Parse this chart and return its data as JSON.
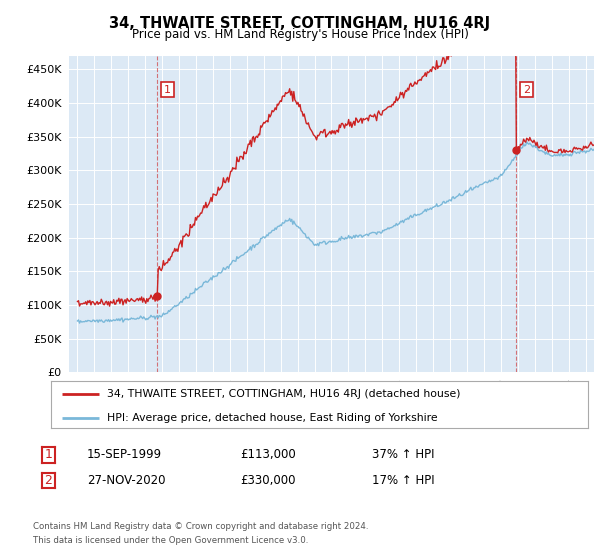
{
  "title": "34, THWAITE STREET, COTTINGHAM, HU16 4RJ",
  "subtitle": "Price paid vs. HM Land Registry's House Price Index (HPI)",
  "legend_line1": "34, THWAITE STREET, COTTINGHAM, HU16 4RJ (detached house)",
  "legend_line2": "HPI: Average price, detached house, East Riding of Yorkshire",
  "footnote1": "Contains HM Land Registry data © Crown copyright and database right 2024.",
  "footnote2": "This data is licensed under the Open Government Licence v3.0.",
  "annotation1_date": "15-SEP-1999",
  "annotation1_price": "£113,000",
  "annotation1_hpi": "37% ↑ HPI",
  "annotation2_date": "27-NOV-2020",
  "annotation2_price": "£330,000",
  "annotation2_hpi": "17% ↑ HPI",
  "sale1_x": 1999.71,
  "sale1_y": 113000,
  "sale2_x": 2020.9,
  "sale2_y": 330000,
  "hpi_color": "#7ab8d9",
  "sale_color": "#cc2222",
  "annotation_box_color": "#cc2222",
  "plot_bg_color": "#dce9f5",
  "ylim": [
    0,
    470000
  ],
  "xlim_start": 1994.5,
  "xlim_end": 2025.5,
  "yticks": [
    0,
    50000,
    100000,
    150000,
    200000,
    250000,
    300000,
    350000,
    400000,
    450000
  ],
  "xticks": [
    1995,
    1996,
    1997,
    1998,
    1999,
    2000,
    2001,
    2002,
    2003,
    2004,
    2005,
    2006,
    2007,
    2008,
    2009,
    2010,
    2011,
    2012,
    2013,
    2014,
    2015,
    2016,
    2017,
    2018,
    2019,
    2020,
    2021,
    2022,
    2023,
    2024,
    2025
  ]
}
